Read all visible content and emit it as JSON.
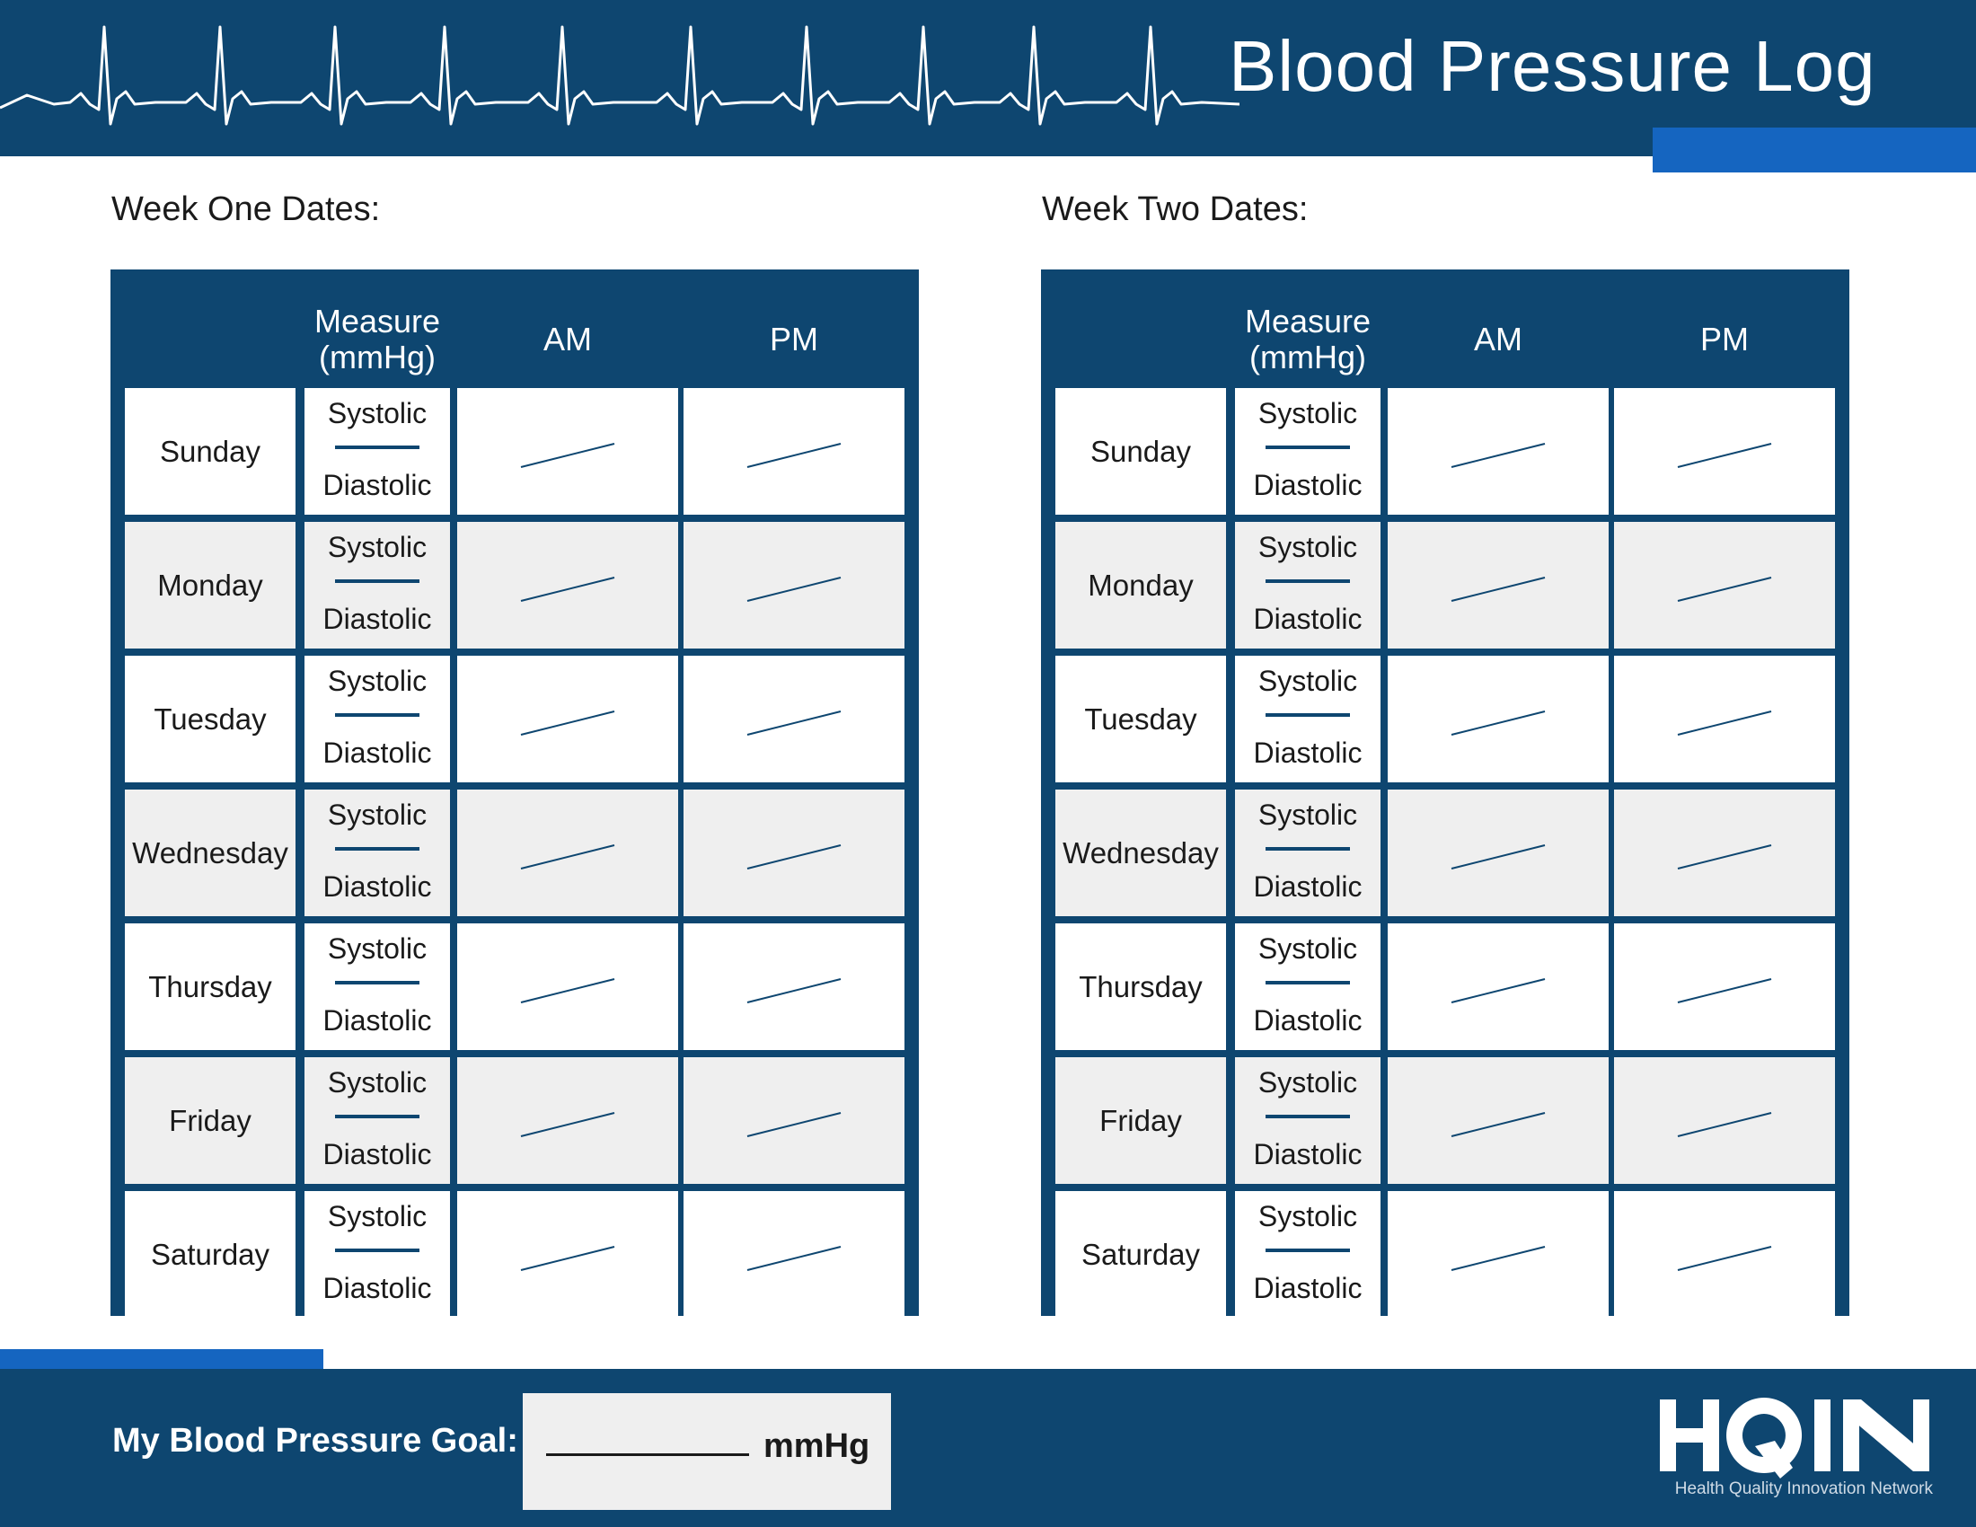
{
  "title": "Blood Pressure Log",
  "colors": {
    "navy": "#0e4670",
    "accent_blue": "#1565c0",
    "grey_row": "#efefef"
  },
  "weeks": [
    {
      "label": "Week One Dates:"
    },
    {
      "label": "Week Two Dates:"
    }
  ],
  "table": {
    "headers": {
      "measure": "Measure\n(mmHg)",
      "am": "AM",
      "pm": "PM"
    },
    "systolic": "Systolic",
    "diastolic": "Diastolic",
    "days": [
      "Sunday",
      "Monday",
      "Tuesday",
      "Wednesday",
      "Thursday",
      "Friday",
      "Saturday"
    ]
  },
  "goal": {
    "label": "My Blood Pressure Goal:",
    "unit": "mmHg"
  },
  "logo": {
    "text": "HQIN",
    "subtitle": "Health Quality Innovation Network"
  },
  "icons": [
    "ecg-line-icon",
    "hqin-logo"
  ]
}
